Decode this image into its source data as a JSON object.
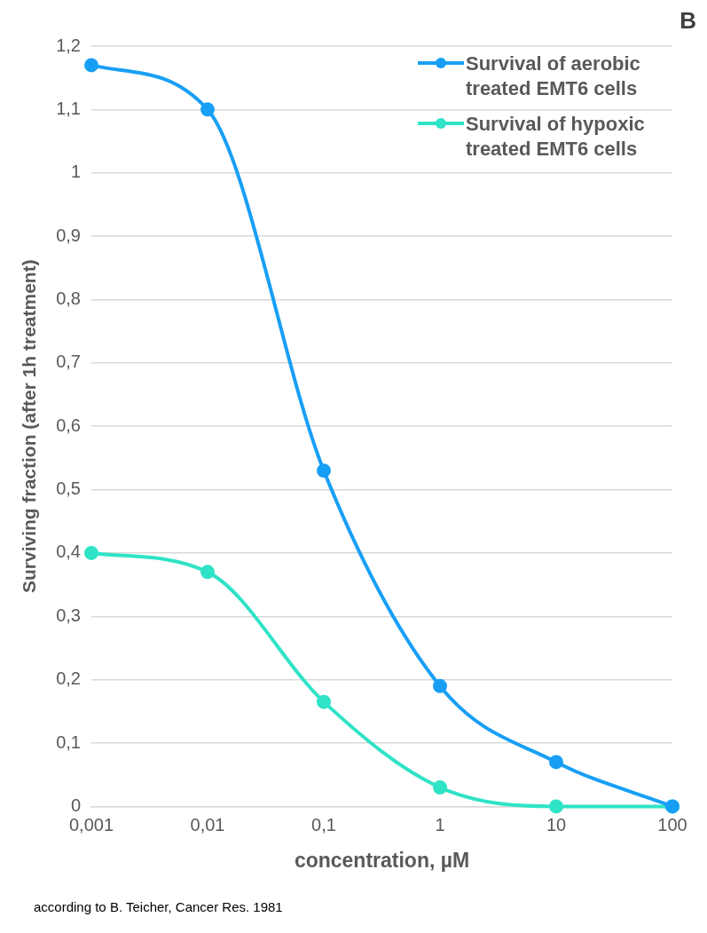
{
  "chart_data": {
    "type": "line",
    "xlabel": "concentration, µM",
    "ylabel": "Surviving fraction (after 1h treatment)",
    "annotations": [
      "B",
      "according to B. Teicher, Cancer Res. 1981"
    ],
    "x": [
      0.001,
      0.01,
      0.1,
      1,
      10,
      100
    ],
    "series": [
      {
        "name": "Survival of aerobic treated EMT6 cells",
        "color": "#189ff5",
        "values": [
          1.17,
          1.1,
          0.53,
          0.19,
          0.07,
          0
        ]
      },
      {
        "name": "Survival of hypoxic treated EMT6 cells",
        "color": "#2fe3c6",
        "values": [
          0.4,
          0.37,
          0.165,
          0.03,
          0,
          0
        ]
      }
    ],
    "xlim": [
      0.001,
      100
    ],
    "xticks": [
      {
        "value": 0.001,
        "label": "0,001"
      },
      {
        "value": 0.01,
        "label": "0,01"
      },
      {
        "value": 0.1,
        "label": "0,1"
      },
      {
        "value": 1,
        "label": "1"
      },
      {
        "value": 10,
        "label": "10"
      },
      {
        "value": 100,
        "label": "100"
      }
    ],
    "ylim": [
      0,
      1.2
    ],
    "yticks": [
      0,
      {
        "value": 0.1,
        "label": "0,1"
      },
      {
        "value": 0.2,
        "label": "0,2"
      },
      {
        "value": 0.3,
        "label": "0,3"
      },
      {
        "value": 0.4,
        "label": "0,4"
      },
      {
        "value": 0.5,
        "label": "0,5"
      },
      {
        "value": 0.6,
        "label": "0,6"
      },
      {
        "value": 0.7,
        "label": "0,7"
      },
      {
        "value": 0.8,
        "label": "0,8"
      },
      {
        "value": 0.9,
        "label": "0,9"
      },
      1,
      {
        "value": 1.1,
        "label": "1,1"
      },
      {
        "value": 1.2,
        "label": "1,2"
      }
    ],
    "log": "x",
    "grid": "y",
    "legend": "top right",
    "marker": "circle",
    "line_style": "solid"
  }
}
